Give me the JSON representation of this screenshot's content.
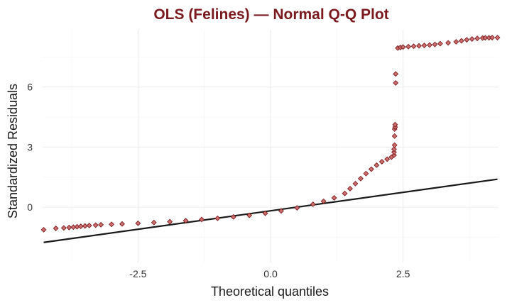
{
  "chart_data": {
    "type": "scatter",
    "title": "OLS (Felines) — Normal Q-Q Plot",
    "xlabel": "Theoretical quantiles",
    "ylabel": "Standardized Residuals",
    "xlim": [
      -4.3,
      4.3
    ],
    "ylim": [
      -2.75,
      8.85
    ],
    "x_ticks": [
      -2.5,
      0.0,
      2.5
    ],
    "x_tick_labels": [
      "-2.5",
      "0.0",
      "2.5"
    ],
    "y_ticks": [
      0,
      3,
      6
    ],
    "y_tick_labels": [
      "0",
      "3",
      "6"
    ],
    "grid": true,
    "legend": "none",
    "series": [
      {
        "kind": "points",
        "x": [
          -4.28,
          -4.05,
          -3.9,
          -3.8,
          -3.72,
          -3.65,
          -3.58,
          -3.5,
          -3.42,
          -3.3,
          -3.2,
          -3.0,
          -2.8,
          -2.5,
          -2.2,
          -1.9,
          -1.6,
          -1.3,
          -1.0,
          -0.7,
          -0.4,
          -0.1,
          0.2,
          0.5,
          0.8,
          1.0,
          1.2,
          1.4,
          1.5,
          1.6,
          1.7,
          1.8,
          1.9,
          2.0,
          2.1,
          2.2,
          2.28,
          2.33,
          2.33,
          2.33,
          2.34,
          2.34,
          2.34,
          2.35,
          2.35,
          2.36,
          2.36,
          2.4,
          2.45,
          2.5,
          2.6,
          2.7,
          2.8,
          2.9,
          3.0,
          3.1,
          3.2,
          3.35,
          3.5,
          3.6,
          3.7,
          3.8,
          3.9,
          4.0,
          4.05,
          4.12,
          4.18,
          4.28
        ],
        "y": [
          -1.12,
          -1.05,
          -1.03,
          -1.01,
          -0.99,
          -0.97,
          -0.95,
          -0.93,
          -0.91,
          -0.89,
          -0.87,
          -0.85,
          -0.83,
          -0.8,
          -0.76,
          -0.72,
          -0.67,
          -0.61,
          -0.55,
          -0.48,
          -0.4,
          -0.3,
          -0.18,
          -0.03,
          0.15,
          0.3,
          0.47,
          0.69,
          0.93,
          1.18,
          1.43,
          1.68,
          1.9,
          2.1,
          2.27,
          2.4,
          2.5,
          2.6,
          2.75,
          2.9,
          3.1,
          3.55,
          3.9,
          4.0,
          4.12,
          6.2,
          6.65,
          7.94,
          7.97,
          7.99,
          8.01,
          8.03,
          8.05,
          8.07,
          8.09,
          8.12,
          8.16,
          8.2,
          8.25,
          8.3,
          8.35,
          8.39,
          8.42,
          8.44,
          8.45,
          8.45,
          8.46,
          8.46
        ],
        "color": "#7b1a1e",
        "fill": "#cd6f6f"
      },
      {
        "kind": "reference-line",
        "x": [
          -4.28,
          4.28
        ],
        "y": [
          -1.75,
          1.4
        ],
        "color": "#1a1a1a"
      }
    ]
  },
  "colors": {
    "title": "#7b1a1e",
    "points_stroke": "#7b1a1e",
    "points_fill": "#cd6f6f",
    "line": "#1a1a1a",
    "background": "#ffffff"
  }
}
